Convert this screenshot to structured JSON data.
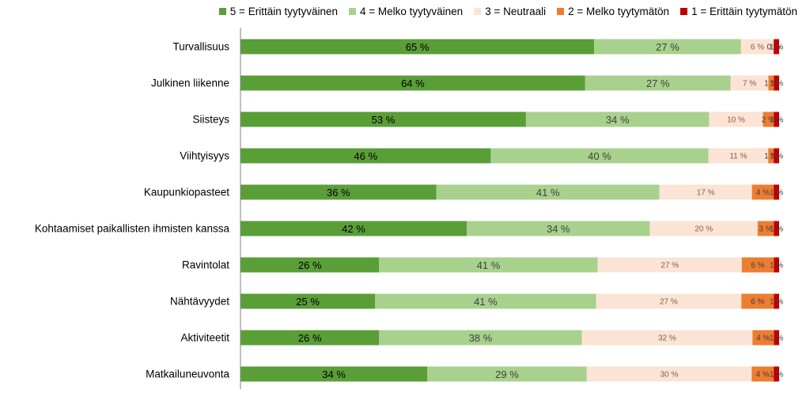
{
  "chart_data": {
    "type": "bar",
    "orientation": "horizontal",
    "stacked": true,
    "normalized": true,
    "title": "",
    "xlabel": "",
    "ylabel": "",
    "xlim": [
      0,
      100
    ],
    "categories": [
      "Turvallisuus",
      "Julkinen liikenne",
      "Siisteys",
      "Viihtyisyys",
      "Kaupunkiopasteet",
      "Kohtaamiset paikallisten ihmisten kanssa",
      "Ravintolat",
      "Nähtävyydet",
      "Aktiviteetit",
      "Matkailuneuvonta"
    ],
    "series": [
      {
        "name": "5 = Erittäin tyytyväinen",
        "color": "#5a9e38",
        "values": [
          65,
          64,
          53,
          46,
          36,
          42,
          26,
          25,
          26,
          34
        ]
      },
      {
        "name": "4 = Melko tyytyväinen",
        "color": "#a8d18d",
        "values": [
          27,
          27,
          34,
          40,
          41,
          34,
          41,
          41,
          38,
          29
        ]
      },
      {
        "name": "3 = Neutraali",
        "color": "#fbe4d5",
        "values": [
          6,
          7,
          10,
          11,
          17,
          20,
          27,
          27,
          32,
          30
        ]
      },
      {
        "name": "2 = Melko tyytymätön",
        "color": "#ed7d31",
        "values": [
          0,
          1,
          2,
          1,
          4,
          3,
          6,
          6,
          4,
          4
        ]
      },
      {
        "name": "1 = Erittäin tyytymätön",
        "color": "#c00000",
        "values": [
          1,
          1,
          1,
          1,
          1,
          1,
          1,
          1,
          1,
          1
        ]
      }
    ],
    "labels": [
      [
        "65 %",
        "27 %",
        "6 %",
        "0 %",
        "1 %"
      ],
      [
        "64 %",
        "27 %",
        "7 %",
        "1 %",
        "1 %"
      ],
      [
        "53 %",
        "34 %",
        "10 %",
        "2 %",
        "1 %"
      ],
      [
        "46 %",
        "40 %",
        "11 %",
        "1 %",
        "1 %"
      ],
      [
        "36 %",
        "41 %",
        "17 %",
        "4 %",
        "1 %"
      ],
      [
        "42 %",
        "34 %",
        "20 %",
        "3 %",
        "1 %"
      ],
      [
        "26 %",
        "41 %",
        "27 %",
        "6 %",
        "1 %"
      ],
      [
        "25 %",
        "41 %",
        "27 %",
        "6 %",
        "1 %"
      ],
      [
        "26 %",
        "38 %",
        "32 %",
        "4 %",
        "1 %"
      ],
      [
        "34 %",
        "29 %",
        "30 %",
        "4 %",
        "1 %"
      ]
    ],
    "label_colors": [
      "#000000",
      "#404040",
      "#8c5a4a",
      "#404040",
      "#404040"
    ],
    "legend_position": "top-right"
  }
}
